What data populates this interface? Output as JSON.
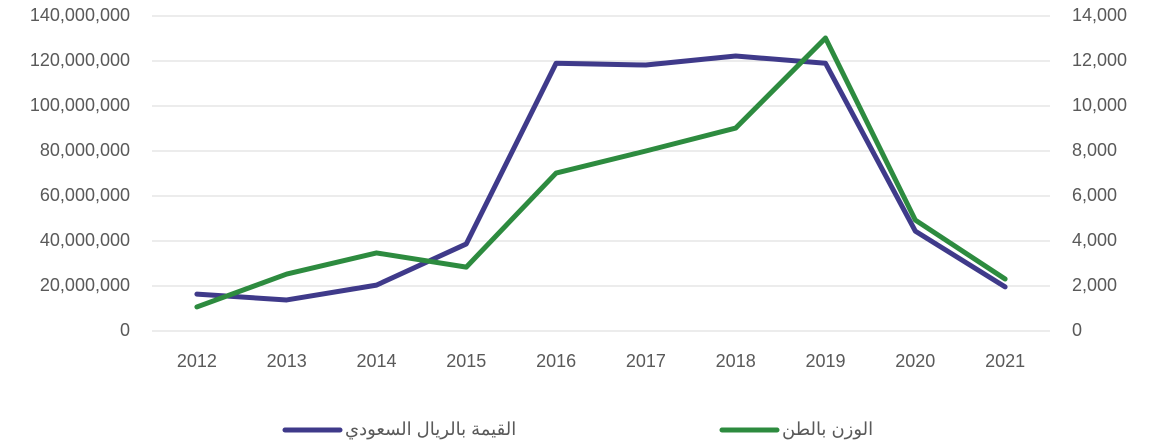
{
  "chart_data": {
    "type": "line",
    "categories": [
      "2012",
      "2013",
      "2014",
      "2015",
      "2016",
      "2017",
      "2018",
      "2019",
      "2020",
      "2021"
    ],
    "series": [
      {
        "name": "القيمة بالريال السعودي",
        "color": "#3f3a8a",
        "values": [
          16400000,
          13800000,
          20400000,
          38700000,
          119000000,
          118200000,
          122200000,
          119000000,
          44400000,
          19600000
        ]
      },
      {
        "name": "الوزن بالطن",
        "color": "#2d8b3f",
        "axis": "y2",
        "values": [
          1070,
          2530,
          3470,
          2840,
          7020,
          8000,
          9020,
          13020,
          4930,
          2310
        ]
      }
    ],
    "ylim": [
      0,
      140000000
    ],
    "yticks": [
      0,
      {
        "value": 20000000,
        "label": "20,000,000"
      },
      {
        "value": 40000000,
        "label": "40,000,000"
      },
      {
        "value": 60000000,
        "label": "60,000,000"
      },
      {
        "value": 80000000,
        "label": "80,000,000"
      },
      {
        "value": 100000000,
        "label": "100,000,000"
      },
      {
        "value": 120000000,
        "label": "120,000,000"
      },
      {
        "value": 140000000,
        "label": "140,000,000"
      }
    ],
    "y2lim": [
      0,
      14000
    ],
    "y2ticks": [
      0,
      {
        "value": 2000,
        "label": "2,000"
      },
      {
        "value": 4000,
        "label": "4,000"
      },
      {
        "value": 6000,
        "label": "6,000"
      },
      {
        "value": 8000,
        "label": "8,000"
      },
      {
        "value": 10000,
        "label": "10,000"
      },
      {
        "value": 12000,
        "label": "12,000"
      },
      {
        "value": 14000,
        "label": "14,000"
      }
    ],
    "grid": true,
    "legend": "bottom"
  }
}
